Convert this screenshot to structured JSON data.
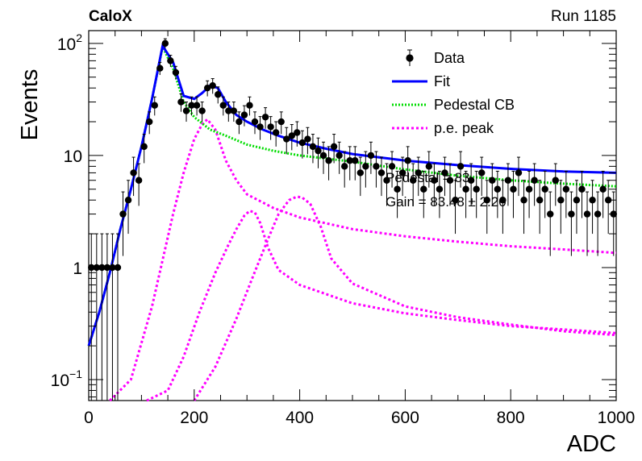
{
  "header": {
    "brand": "CaloX",
    "run": "Run 1185"
  },
  "chart_data": {
    "type": "scatter",
    "xlabel": "ADC",
    "ylabel": "Events",
    "xlim": [
      0,
      1000
    ],
    "ylim": [
      0.065,
      130
    ],
    "yscale": "log",
    "grid": false,
    "legend_position": "top-right",
    "x_ticks": [
      "0",
      "200",
      "400",
      "600",
      "800",
      "1000"
    ],
    "y_ticks": [
      {
        "value": 0.1,
        "base": "10",
        "exp": "−1"
      },
      {
        "value": 1,
        "label": "1"
      },
      {
        "value": 10,
        "label": "10"
      },
      {
        "value": 100,
        "base": "10",
        "exp": "2"
      }
    ],
    "legend": [
      {
        "label": "Data",
        "style": "marker",
        "color": "#000000"
      },
      {
        "label": "Fit",
        "style": "solid",
        "color": "#0000ff"
      },
      {
        "label": "Pedestal CB",
        "style": "dotted",
        "color": "#00dd00"
      },
      {
        "label": "p.e. peak",
        "style": "dashed",
        "color": "#ff00ff"
      }
    ],
    "annotations": [
      "Pedestal = 83",
      "Gain = 83.48 ± 2.20"
    ],
    "data_points": [
      [
        5,
        1
      ],
      [
        15,
        1
      ],
      [
        25,
        1
      ],
      [
        35,
        1
      ],
      [
        45,
        1
      ],
      [
        55,
        1
      ],
      [
        65,
        3
      ],
      [
        75,
        4
      ],
      [
        85,
        7
      ],
      [
        95,
        6
      ],
      [
        105,
        12
      ],
      [
        115,
        20
      ],
      [
        125,
        28
      ],
      [
        135,
        60
      ],
      [
        145,
        100
      ],
      [
        155,
        70
      ],
      [
        165,
        55
      ],
      [
        175,
        30
      ],
      [
        185,
        25
      ],
      [
        195,
        28
      ],
      [
        205,
        28
      ],
      [
        215,
        25
      ],
      [
        225,
        40
      ],
      [
        235,
        42
      ],
      [
        245,
        35
      ],
      [
        255,
        28
      ],
      [
        265,
        25
      ],
      [
        275,
        25
      ],
      [
        285,
        20
      ],
      [
        295,
        23
      ],
      [
        305,
        28
      ],
      [
        315,
        20
      ],
      [
        325,
        18
      ],
      [
        335,
        22
      ],
      [
        345,
        18
      ],
      [
        355,
        16
      ],
      [
        365,
        20
      ],
      [
        375,
        14
      ],
      [
        385,
        15
      ],
      [
        395,
        16
      ],
      [
        405,
        13
      ],
      [
        415,
        14
      ],
      [
        425,
        12
      ],
      [
        435,
        11
      ],
      [
        445,
        10
      ],
      [
        455,
        9
      ],
      [
        465,
        12
      ],
      [
        475,
        10
      ],
      [
        485,
        8
      ],
      [
        495,
        9
      ],
      [
        505,
        9
      ],
      [
        515,
        7
      ],
      [
        525,
        8
      ],
      [
        535,
        10
      ],
      [
        545,
        8
      ],
      [
        555,
        7
      ],
      [
        565,
        6
      ],
      [
        575,
        8
      ],
      [
        585,
        5
      ],
      [
        595,
        7
      ],
      [
        605,
        9
      ],
      [
        615,
        6
      ],
      [
        625,
        7
      ],
      [
        635,
        5
      ],
      [
        645,
        8
      ],
      [
        655,
        6
      ],
      [
        665,
        5
      ],
      [
        675,
        7
      ],
      [
        685,
        6
      ],
      [
        695,
        4
      ],
      [
        705,
        8
      ],
      [
        715,
        5
      ],
      [
        725,
        6
      ],
      [
        735,
        5
      ],
      [
        745,
        7
      ],
      [
        755,
        4
      ],
      [
        765,
        6
      ],
      [
        775,
        5
      ],
      [
        785,
        4
      ],
      [
        795,
        6
      ],
      [
        805,
        5
      ],
      [
        815,
        7
      ],
      [
        825,
        4
      ],
      [
        835,
        5
      ],
      [
        845,
        6
      ],
      [
        855,
        4
      ],
      [
        865,
        5
      ],
      [
        875,
        3
      ],
      [
        885,
        6
      ],
      [
        895,
        4
      ],
      [
        905,
        5
      ],
      [
        915,
        3
      ],
      [
        925,
        4
      ],
      [
        935,
        5
      ],
      [
        945,
        3
      ],
      [
        955,
        4
      ],
      [
        965,
        3
      ],
      [
        975,
        5
      ],
      [
        985,
        4
      ],
      [
        995,
        3
      ]
    ],
    "series": [
      {
        "name": "Fit",
        "x": [
          0,
          20,
          40,
          60,
          80,
          100,
          120,
          140,
          160,
          180,
          200,
          215,
          230,
          245,
          260,
          280,
          300,
          330,
          360,
          400,
          450,
          500,
          600,
          700,
          800,
          900,
          1000
        ],
        "y": [
          0.2,
          0.4,
          0.9,
          2.2,
          5,
          12,
          32,
          95,
          68,
          34,
          32,
          36,
          42,
          40,
          30,
          23,
          20,
          17,
          15,
          13,
          11.5,
          10.3,
          9,
          8.2,
          7.6,
          7.2,
          7
        ]
      },
      {
        "name": "Pedestal CB",
        "x": [
          0,
          20,
          40,
          60,
          80,
          100,
          120,
          140,
          160,
          180,
          200,
          230,
          260,
          300,
          350,
          400,
          500,
          600,
          700,
          800,
          900,
          1000
        ],
        "y": [
          0.2,
          0.4,
          0.9,
          2.2,
          5,
          12,
          32,
          93,
          60,
          30,
          22,
          17,
          15,
          12.5,
          11,
          10,
          8.8,
          7.5,
          6.6,
          6,
          5.6,
          5.3
        ]
      },
      {
        "name": "p.e. peak 1",
        "x": [
          40,
          80,
          120,
          160,
          180,
          200,
          215,
          225,
          240,
          260,
          280,
          300,
          350,
          400,
          500,
          600,
          700,
          800,
          900,
          1000
        ],
        "y": [
          0.065,
          0.1,
          0.45,
          3,
          7,
          14,
          19,
          21,
          17,
          9,
          6,
          4.5,
          3.4,
          2.8,
          2.2,
          1.9,
          1.7,
          1.55,
          1.45,
          1.35
        ]
      },
      {
        "name": "p.e. peak 2",
        "x": [
          110,
          150,
          180,
          210,
          240,
          265,
          280,
          295,
          305,
          315,
          325,
          340,
          360,
          400,
          500,
          600,
          700,
          800,
          900,
          1000
        ],
        "y": [
          0.065,
          0.08,
          0.16,
          0.4,
          0.9,
          1.6,
          2.2,
          2.9,
          3.2,
          3.1,
          2.5,
          1.5,
          0.95,
          0.7,
          0.48,
          0.39,
          0.34,
          0.3,
          0.28,
          0.26
        ]
      },
      {
        "name": "p.e. peak 3",
        "x": [
          200,
          240,
          280,
          310,
          340,
          360,
          380,
          395,
          405,
          420,
          440,
          460,
          500,
          600,
          700,
          800,
          900,
          1000
        ],
        "y": [
          0.065,
          0.13,
          0.35,
          0.8,
          1.8,
          3,
          4,
          4.3,
          4.2,
          3.7,
          2.3,
          1.2,
          0.72,
          0.45,
          0.36,
          0.31,
          0.27,
          0.25
        ]
      }
    ]
  }
}
